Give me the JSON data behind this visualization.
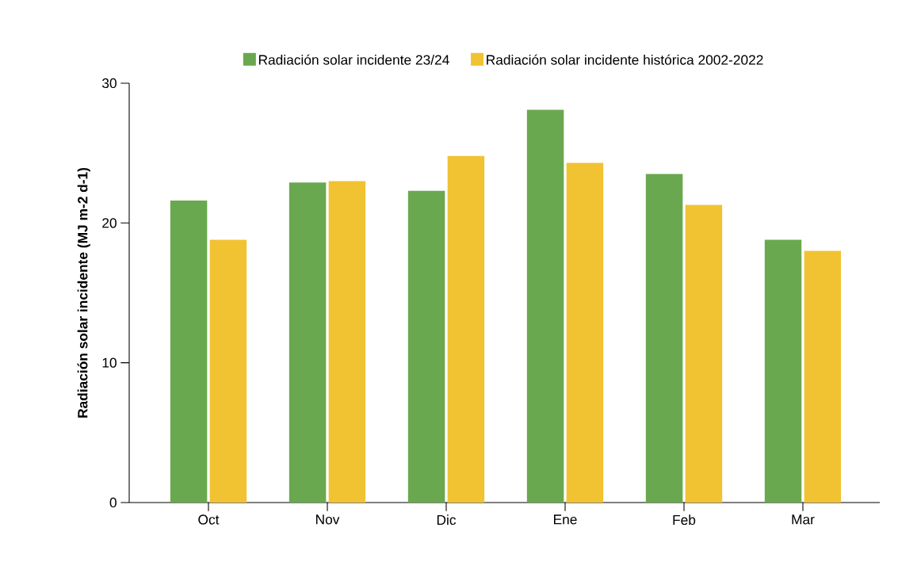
{
  "chart_data": {
    "type": "bar",
    "ylabel": "Radiación solar incidente (MJ m-2 d-1)",
    "categories": [
      "Oct",
      "Nov",
      "Dic",
      "Ene",
      "Feb",
      "Mar"
    ],
    "series": [
      {
        "name": "Radiación solar incidente 23/24",
        "color": "#6aa84f",
        "values": [
          21.6,
          22.9,
          22.3,
          28.1,
          23.5,
          18.8
        ]
      },
      {
        "name": "Radiación solar incidente histórica 2002-2022",
        "color": "#f1c232",
        "values": [
          18.8,
          23.0,
          24.8,
          24.3,
          21.3,
          18.0
        ]
      }
    ],
    "ylim": [
      0,
      30
    ],
    "yticks": [
      0,
      10,
      20,
      30
    ],
    "grid": false,
    "legend": "top"
  }
}
